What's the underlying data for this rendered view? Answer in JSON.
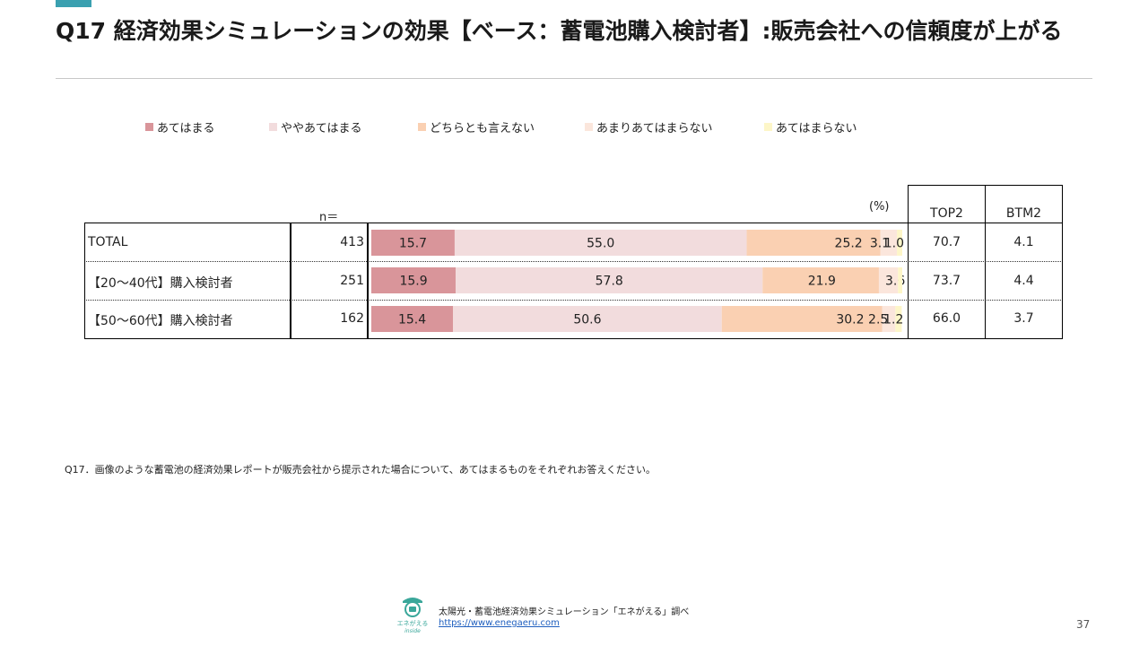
{
  "header": {
    "title": "Q17 経済効果シミュレーションの効果【ベース：蓄電池購入検討者】:販売会社への信頼度が上がる",
    "accent_color": "#3aa0b0"
  },
  "legend": [
    {
      "label": "あてはまる",
      "color": "#d9959a"
    },
    {
      "label": "ややあてはまる",
      "color": "#f2dcdd"
    },
    {
      "label": "どちらとも言えない",
      "color": "#fad0b2"
    },
    {
      "label": "あまりあてはまらない",
      "color": "#fbe6dc"
    },
    {
      "label": "あてはまらない",
      "color": "#fdf6c8"
    }
  ],
  "table_labels": {
    "n_label": "n＝",
    "pct_label": "(%)",
    "top2_header": "TOP2",
    "btm2_header": "BTM2"
  },
  "chart_data": {
    "type": "bar",
    "orientation": "horizontal",
    "stacked": true,
    "unit": "%",
    "categories": [
      "TOTAL",
      "【20～40代】購入検討者",
      "【50～60代】購入検討者"
    ],
    "n": [
      413,
      251,
      162
    ],
    "series": [
      {
        "name": "あてはまる",
        "values": [
          15.7,
          15.9,
          15.4
        ],
        "color": "#d9959a"
      },
      {
        "name": "ややあてはまる",
        "values": [
          55.0,
          57.8,
          50.6
        ],
        "color": "#f2dcdd"
      },
      {
        "name": "どちらとも言えない",
        "values": [
          25.2,
          21.9,
          30.2
        ],
        "color": "#fad0b2"
      },
      {
        "name": "あまりあてはまらない",
        "values": [
          3.1,
          3.6,
          2.5
        ],
        "color": "#fbe6dc"
      },
      {
        "name": "あてはまらない",
        "values": [
          1.0,
          0.8,
          1.2
        ],
        "color": "#fdf6c8"
      }
    ],
    "data_labels": [
      [
        "15.7",
        "55.0",
        "25.2",
        "3.1",
        "1.0"
      ],
      [
        "15.9",
        "57.8",
        "21.9",
        "3.6",
        ""
      ],
      [
        "15.4",
        "50.6",
        "30.2",
        "2.5",
        "1.2"
      ]
    ],
    "top2": [
      "70.7",
      "73.7",
      "66.0"
    ],
    "btm2": [
      "4.1",
      "4.4",
      "3.7"
    ],
    "xlim": [
      0,
      100
    ]
  },
  "question": "Q17．画像のような蓄電池の経済効果レポートが販売会社から提示された場合について、あてはまるものをそれぞれお答えください。",
  "footer": {
    "logo_text": "エネがえる",
    "logo_subtext": "inside",
    "source": "太陽光・蓄電池経済効果シミュレーション「エネがえる」調べ",
    "url": "https://www.enegaeru.com",
    "page_number": "37",
    "logo_color": "#3aa79a"
  }
}
